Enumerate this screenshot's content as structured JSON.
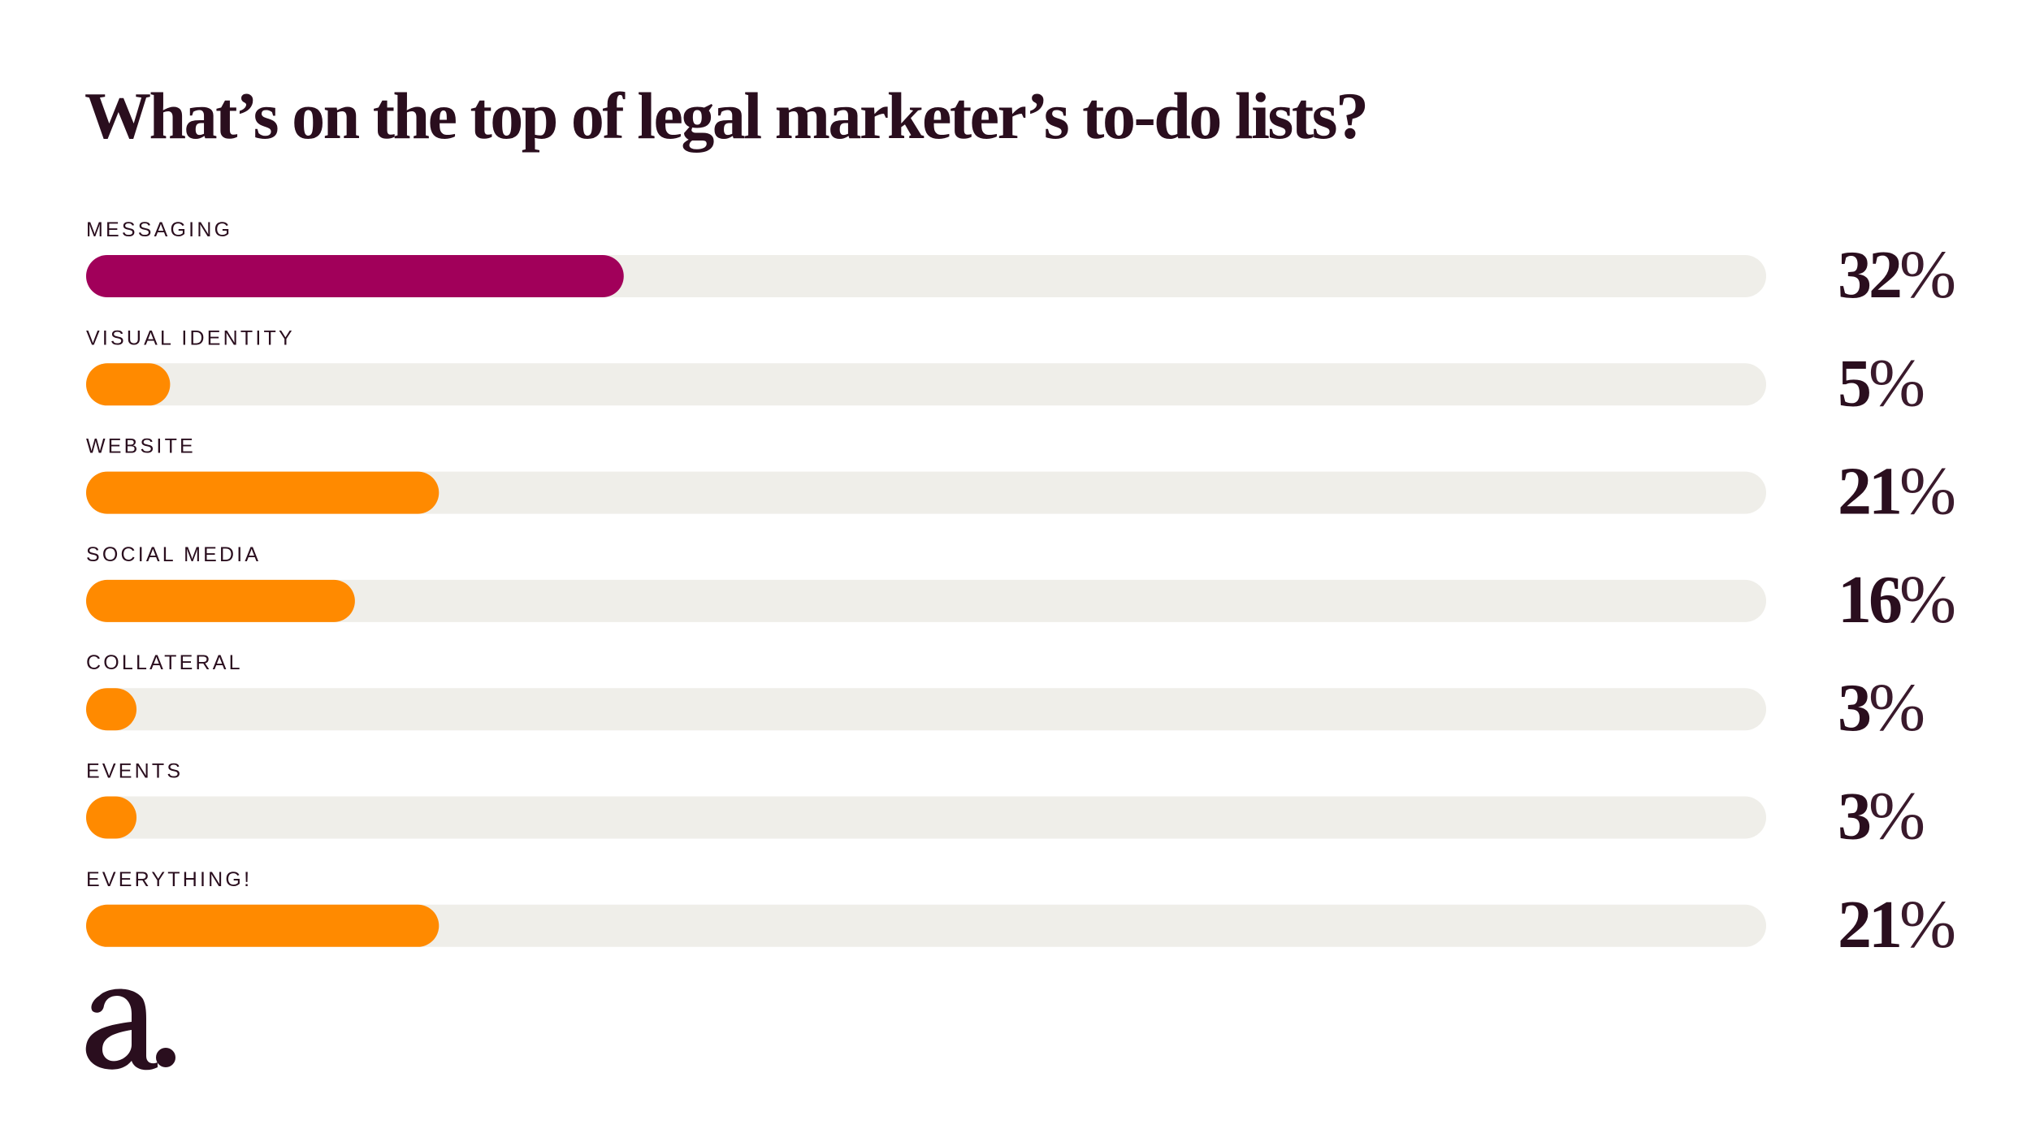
{
  "title": "What’s on the top of legal marketer’s to-do lists?",
  "logo_text": "a.",
  "colors": {
    "text": "#2a0e1e",
    "track": "#efeee9",
    "highlight": "#a1005a",
    "bar": "#ff8a00",
    "background": "#ffffff"
  },
  "chart_data": {
    "type": "bar",
    "orientation": "horizontal",
    "title": "What’s on the top of legal marketer’s to-do lists?",
    "xlim": [
      0,
      100
    ],
    "unit": "%",
    "categories": [
      "MESSAGING",
      "VISUAL IDENTITY",
      "WEBSITE",
      "SOCIAL MEDIA",
      "COLLATERAL",
      "EVENTS",
      "EVERYTHING!"
    ],
    "values": [
      32,
      5,
      21,
      16,
      3,
      3,
      21
    ],
    "value_labels": [
      "32%",
      "5%",
      "21%",
      "16%",
      "3%",
      "3%",
      "21%"
    ],
    "highlighted_category": "MESSAGING",
    "grid": false,
    "legend": "none"
  }
}
